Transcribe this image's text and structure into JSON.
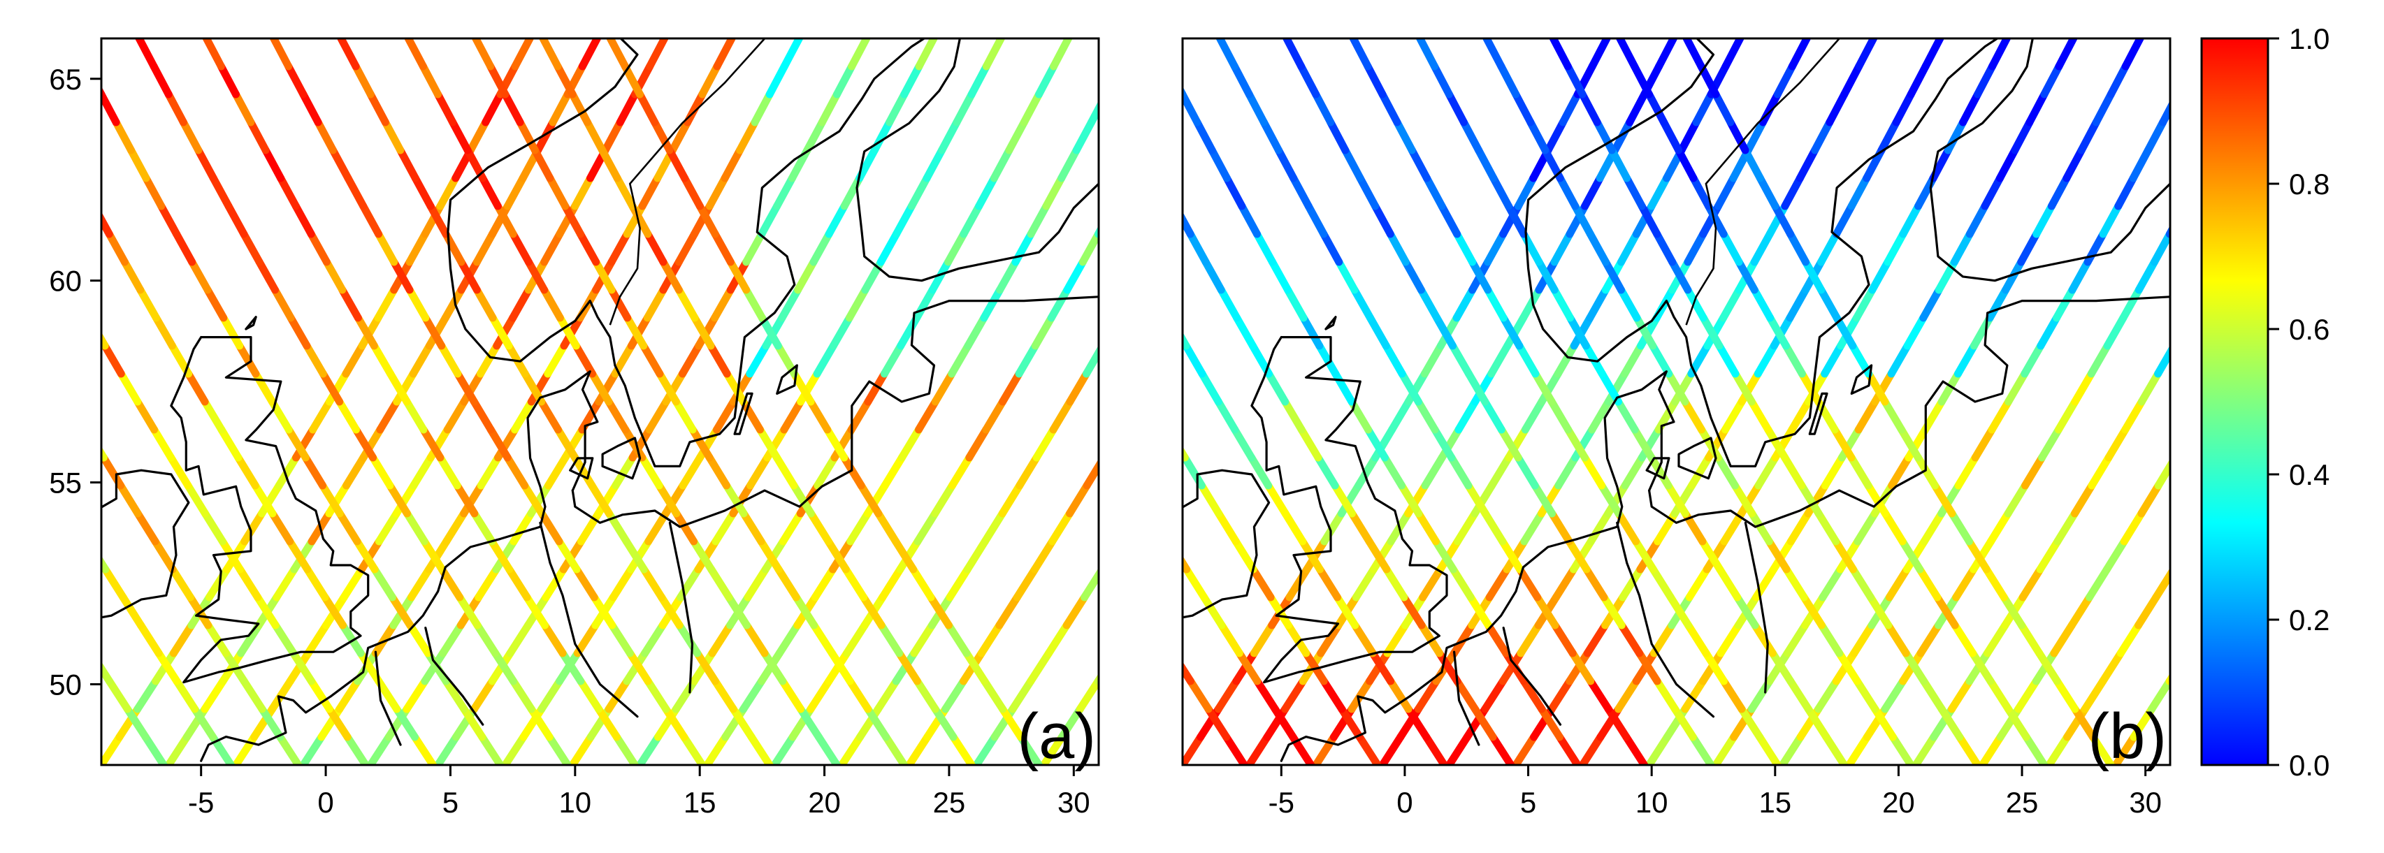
{
  "figure": {
    "panels": [
      {
        "id": "a",
        "label": "(a)"
      },
      {
        "id": "b",
        "label": "(b)"
      }
    ],
    "x_ticks": [
      "-5",
      "0",
      "5",
      "10",
      "15",
      "20",
      "25",
      "30"
    ],
    "y_ticks": [
      "65",
      "60",
      "55",
      "50"
    ],
    "x_tick_values": [
      -5,
      0,
      5,
      10,
      15,
      20,
      25,
      30
    ],
    "y_tick_values": [
      65,
      60,
      55,
      50
    ],
    "lon_range": [
      -9,
      31
    ],
    "lat_range": [
      48,
      66
    ],
    "colorbar": {
      "ticks": [
        "1.0",
        "0.8",
        "0.6",
        "0.4",
        "0.2",
        "0.0"
      ],
      "tick_values": [
        1.0,
        0.8,
        0.6,
        0.4,
        0.2,
        0.0
      ],
      "range": [
        0,
        1
      ],
      "colormap": "jet",
      "colors": [
        "#0000ff",
        "#0080ff",
        "#00ffff",
        "#80ff80",
        "#ffff00",
        "#ff8000",
        "#ff0000"
      ]
    },
    "map_region": "North Sea, Baltic Sea and Scandinavia",
    "content": "colored satellite ground tracks over sea, values 0 to 1",
    "panel_a_dominant_values": "mostly 0.6 to 1.0 (yellow to red)",
    "panel_b_dominant_values": "mixed 0.0 to 1.0, blue in the north, yellow/orange in the south"
  }
}
